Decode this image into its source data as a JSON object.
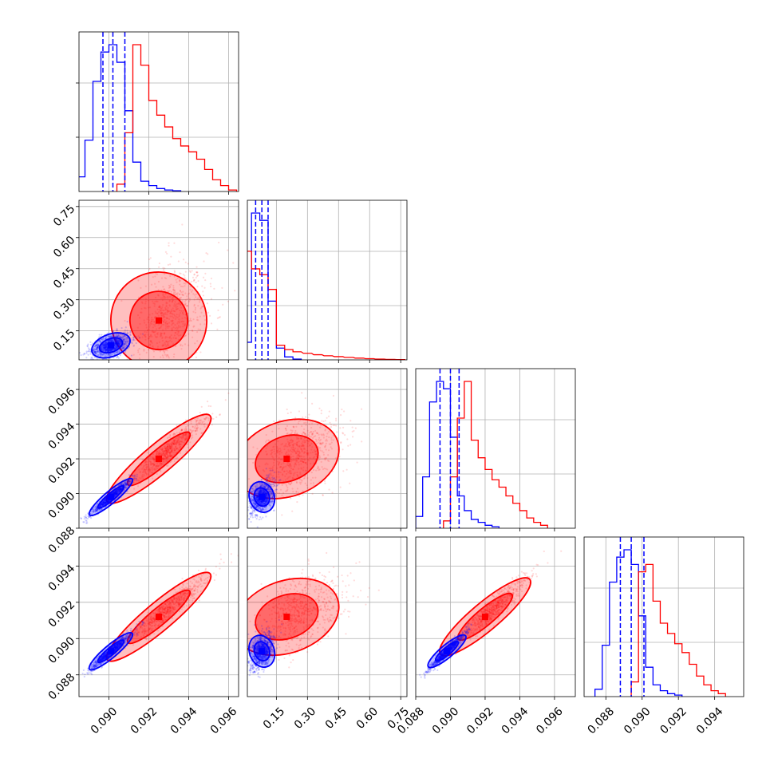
{
  "chart_data": {
    "type": "corner",
    "description_free": true,
    "n_params": 4,
    "grid": true,
    "series": [
      {
        "color": "#0000ff"
      },
      {
        "color": "#ff0000"
      }
    ],
    "params": [
      {
        "range": [
          0.0885,
          0.0965
        ],
        "ticks": [
          "0.090",
          "0.092",
          "0.094",
          "0.096"
        ],
        "tick_values": [
          0.09,
          0.092,
          0.094,
          0.096
        ],
        "quantiles": [
          0.0897,
          0.0902,
          0.0908
        ]
      },
      {
        "range": [
          0.01,
          0.78
        ],
        "ticks": [
          "0.15",
          "0.30",
          "0.45",
          "0.60",
          "0.75"
        ],
        "tick_values": [
          0.15,
          0.3,
          0.45,
          0.6,
          0.75
        ],
        "quantiles": [
          0.05,
          0.08,
          0.11
        ]
      },
      {
        "range": [
          0.088,
          0.0972
        ],
        "ticks": [
          "0.088",
          "0.090",
          "0.092",
          "0.094",
          "0.096"
        ],
        "tick_values": [
          0.088,
          0.09,
          0.092,
          0.094,
          0.096
        ],
        "quantiles": [
          0.0894,
          0.09,
          0.0905
        ]
      },
      {
        "range": [
          0.0868,
          0.0956
        ],
        "ticks": [
          "0.088",
          "0.090",
          "0.092",
          "0.094"
        ],
        "tick_values": [
          0.088,
          0.09,
          0.092,
          0.094
        ],
        "quantiles": [
          0.0888,
          0.0894,
          0.0901
        ]
      }
    ],
    "histograms": [
      {
        "blue": [
          [
            0.0886,
            0.1
          ],
          [
            0.089,
            0.35
          ],
          [
            0.0894,
            0.75
          ],
          [
            0.0898,
            0.95
          ],
          [
            0.0902,
            1.0
          ],
          [
            0.0906,
            0.88
          ],
          [
            0.091,
            0.55
          ],
          [
            0.0914,
            0.2
          ],
          [
            0.0918,
            0.07
          ],
          [
            0.0922,
            0.04
          ],
          [
            0.0926,
            0.02
          ],
          [
            0.093,
            0.01
          ],
          [
            0.0934,
            0.005
          ]
        ],
        "red": [
          [
            0.0906,
            0.05
          ],
          [
            0.091,
            0.4
          ],
          [
            0.0914,
            1.0
          ],
          [
            0.0918,
            0.86
          ],
          [
            0.0922,
            0.62
          ],
          [
            0.0926,
            0.52
          ],
          [
            0.093,
            0.44
          ],
          [
            0.0934,
            0.36
          ],
          [
            0.0938,
            0.31
          ],
          [
            0.0942,
            0.27
          ],
          [
            0.0946,
            0.22
          ],
          [
            0.095,
            0.15
          ],
          [
            0.0954,
            0.08
          ],
          [
            0.0958,
            0.04
          ],
          [
            0.0962,
            0.01
          ]
        ]
      },
      {
        "blue": [
          [
            0.01,
            0.12
          ],
          [
            0.05,
            1.0
          ],
          [
            0.09,
            0.95
          ],
          [
            0.13,
            0.4
          ],
          [
            0.17,
            0.08
          ],
          [
            0.21,
            0.02
          ],
          [
            0.25,
            0.005
          ]
        ],
        "red": [
          [
            0.01,
            0.74
          ],
          [
            0.05,
            0.62
          ],
          [
            0.09,
            0.58
          ],
          [
            0.13,
            0.48
          ],
          [
            0.17,
            0.1
          ],
          [
            0.21,
            0.07
          ],
          [
            0.25,
            0.055
          ],
          [
            0.3,
            0.045
          ],
          [
            0.35,
            0.035
          ],
          [
            0.4,
            0.028
          ],
          [
            0.45,
            0.022
          ],
          [
            0.5,
            0.017
          ],
          [
            0.55,
            0.012
          ],
          [
            0.6,
            0.008
          ],
          [
            0.65,
            0.005
          ],
          [
            0.7,
            0.003
          ],
          [
            0.75,
            0.002
          ]
        ]
      },
      {
        "blue": [
          [
            0.0882,
            0.08
          ],
          [
            0.0886,
            0.35
          ],
          [
            0.089,
            0.86
          ],
          [
            0.0894,
            1.0
          ],
          [
            0.0898,
            0.95
          ],
          [
            0.0902,
            0.62
          ],
          [
            0.0906,
            0.22
          ],
          [
            0.091,
            0.12
          ],
          [
            0.0914,
            0.06
          ],
          [
            0.0918,
            0.04
          ],
          [
            0.0922,
            0.02
          ],
          [
            0.0926,
            0.01
          ]
        ],
        "red": [
          [
            0.0898,
            0.05
          ],
          [
            0.0902,
            0.35
          ],
          [
            0.0906,
            0.75
          ],
          [
            0.091,
            1.0
          ],
          [
            0.0914,
            0.6
          ],
          [
            0.0918,
            0.48
          ],
          [
            0.0922,
            0.4
          ],
          [
            0.0926,
            0.33
          ],
          [
            0.093,
            0.28
          ],
          [
            0.0934,
            0.22
          ],
          [
            0.0938,
            0.17
          ],
          [
            0.0942,
            0.12
          ],
          [
            0.0946,
            0.07
          ],
          [
            0.095,
            0.04
          ],
          [
            0.0954,
            0.02
          ]
        ]
      },
      {
        "blue": [
          [
            0.0876,
            0.05
          ],
          [
            0.088,
            0.35
          ],
          [
            0.0884,
            0.78
          ],
          [
            0.0888,
            0.95
          ],
          [
            0.0892,
            1.0
          ],
          [
            0.0896,
            0.9
          ],
          [
            0.09,
            0.55
          ],
          [
            0.0904,
            0.2
          ],
          [
            0.0908,
            0.08
          ],
          [
            0.0912,
            0.04
          ],
          [
            0.0916,
            0.02
          ],
          [
            0.092,
            0.01
          ]
        ],
        "red": [
          [
            0.0896,
            0.1
          ],
          [
            0.09,
            0.85
          ],
          [
            0.0904,
            0.9
          ],
          [
            0.0908,
            0.65
          ],
          [
            0.0912,
            0.5
          ],
          [
            0.0916,
            0.43
          ],
          [
            0.092,
            0.36
          ],
          [
            0.0924,
            0.3
          ],
          [
            0.0928,
            0.22
          ],
          [
            0.0932,
            0.14
          ],
          [
            0.0936,
            0.08
          ],
          [
            0.094,
            0.04
          ],
          [
            0.0944,
            0.02
          ]
        ]
      }
    ],
    "scatter_centers": {
      "blue": [
        0.0901,
        0.08,
        0.0898,
        0.0893
      ],
      "red": [
        0.0925,
        0.2,
        0.092,
        0.0912
      ]
    }
  }
}
